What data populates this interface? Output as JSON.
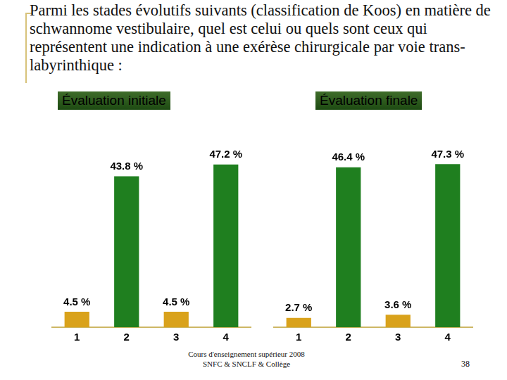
{
  "slide": {
    "title": "Parmi les stades évolutifs suivants (classification de Koos) en matière de schwannome vestibulaire, quel est celui ou quels sont ceux qui représentent une indication à une exérèse chirurgicale par voie trans-labyrinthique :",
    "footer": [
      "Cours d'enseignement supérieur 2008",
      "SNFC & SNCLF & Collège"
    ],
    "page_number": 38
  },
  "chart_data": [
    {
      "type": "bar",
      "title": "Évaluation initiale",
      "categories": [
        "1",
        "2",
        "3",
        "4"
      ],
      "values": [
        4.5,
        43.8,
        4.5,
        47.2
      ],
      "value_labels": [
        "4.5 %",
        "43.8 %",
        "4.5 %",
        "47.2 %"
      ],
      "colors": [
        "#d9a21b",
        "#1f7f1f",
        "#d9a21b",
        "#1f7f1f"
      ],
      "data_labels": true,
      "grid": false,
      "tick_labels": "x"
    },
    {
      "type": "bar",
      "title": "Évaluation finale",
      "categories": [
        "1",
        "2",
        "3",
        "4"
      ],
      "values": [
        2.7,
        46.4,
        3.6,
        47.3
      ],
      "value_labels": [
        "2.7 %",
        "46.4 %",
        "3.6 %",
        "47.3 %"
      ],
      "colors": [
        "#d9a21b",
        "#1f7f1f",
        "#d9a21b",
        "#1f7f1f"
      ],
      "data_labels": true,
      "grid": false,
      "tick_labels": "x"
    }
  ]
}
